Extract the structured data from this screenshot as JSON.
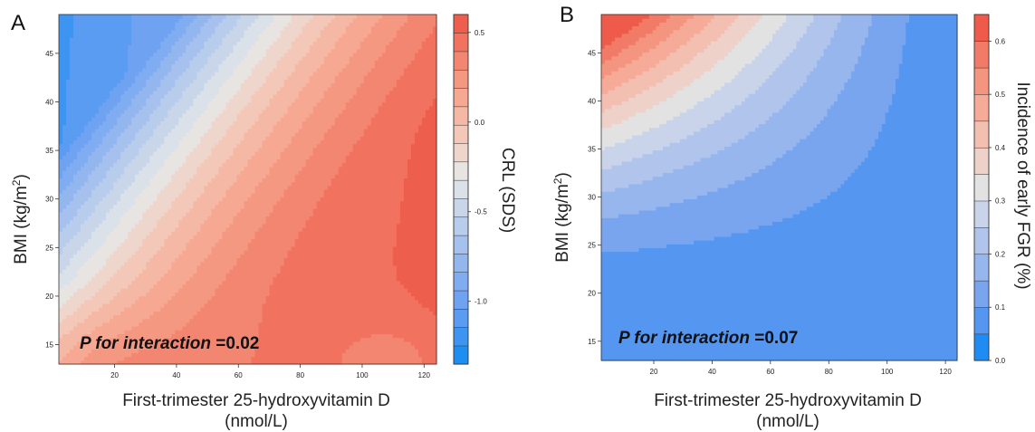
{
  "chart_data": [
    {
      "type": "heatmap",
      "panel_label": "A",
      "xlabel": "First-trimester 25-hydroxyvitamin D",
      "xlabel_unit": "(nmol/L)",
      "ylabel_main": "BMI (kg/m",
      "ylabel_sup": "2",
      "ylabel_close": ")",
      "colorbar_title": "CRL (SDS)",
      "annotation_italic": "P for interaction",
      "annotation_value": " =0.02",
      "x_range": [
        2,
        124
      ],
      "y_range": [
        13,
        49
      ],
      "x_ticks": [
        20,
        40,
        60,
        80,
        100,
        120
      ],
      "x_tick_labels": [
        "20",
        "40",
        "60",
        "80",
        "100",
        "120"
      ],
      "y_ticks": [
        15,
        20,
        25,
        30,
        35,
        40,
        45
      ],
      "y_tick_labels": [
        "15",
        "20",
        "25",
        "30",
        "35",
        "40",
        "45"
      ],
      "colorbar_range": [
        -1.35,
        0.6
      ],
      "colorbar_ticks": [
        -1.0,
        -0.5,
        0.0,
        0.5
      ],
      "colorbar_tick_labels": [
        "-1.0",
        "-0.5",
        "0.0",
        "0.5"
      ],
      "levels": 19,
      "colors": [
        "#1f8ef1",
        "#3d95f1",
        "#5a9cf2",
        "#6fa3f2",
        "#80acf1",
        "#94b6ef",
        "#a7c1ee",
        "#b8ccec",
        "#c9d6ea",
        "#dbe1e8",
        "#e8e4e1",
        "#efd6cd",
        "#f3c8b9",
        "#f5b8a5",
        "#f6a893",
        "#f59882",
        "#f38670",
        "#f1735f",
        "#ee5e4c"
      ]
    },
    {
      "type": "heatmap",
      "panel_label": "B",
      "xlabel": "First-trimester 25-hydroxyvitamin D",
      "xlabel_unit": "(nmol/L)",
      "ylabel_main": "BMI (kg/m",
      "ylabel_sup": "2",
      "ylabel_close": ")",
      "colorbar_title": "Incidence of early FGR (%)",
      "annotation_italic": "P for interaction",
      "annotation_value": " =0.07",
      "x_range": [
        2,
        124
      ],
      "y_range": [
        13,
        49
      ],
      "x_ticks": [
        20,
        40,
        60,
        80,
        100,
        120
      ],
      "x_tick_labels": [
        "20",
        "40",
        "60",
        "80",
        "100",
        "120"
      ],
      "y_ticks": [
        15,
        20,
        25,
        30,
        35,
        40,
        45
      ],
      "y_tick_labels": [
        "15",
        "20",
        "25",
        "30",
        "35",
        "40",
        "45"
      ],
      "colorbar_range": [
        0.0,
        0.65
      ],
      "colorbar_ticks": [
        0.0,
        0.1,
        0.2,
        0.3,
        0.4,
        0.5,
        0.6
      ],
      "colorbar_tick_labels": [
        "0.0",
        "0.1",
        "0.2",
        "0.3",
        "0.4",
        "0.5",
        "0.6"
      ],
      "levels": 13,
      "colors": [
        "#1e8cf2",
        "#5496f0",
        "#79a5ef",
        "#97b6ee",
        "#b1c4ec",
        "#c9d4ea",
        "#e2e2e3",
        "#eed1c8",
        "#f3bfb0",
        "#f5ab98",
        "#f49580",
        "#f17b67",
        "#ee5b4a"
      ]
    }
  ]
}
